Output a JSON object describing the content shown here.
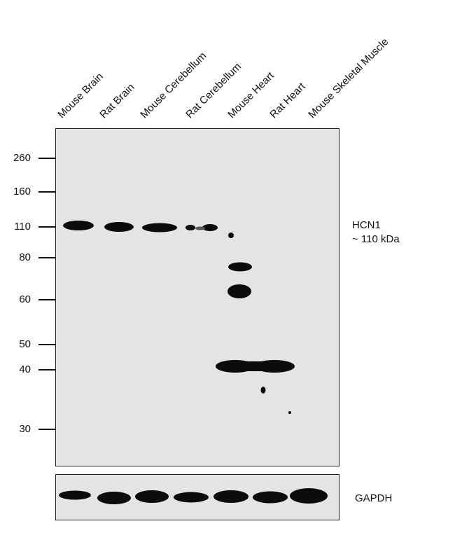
{
  "lanes": [
    "Mouse Brain",
    "Rat Brain",
    "Mouse Cerebellum",
    "Rat Cerebellum",
    "Mouse Heart",
    "Rat Heart",
    "Mouse Skeletal Muscle"
  ],
  "markers": [
    "260",
    "160",
    "110",
    "80",
    "60",
    "50",
    "40",
    "30"
  ],
  "target": {
    "name": "HCN1",
    "size": "~ 110 kDa"
  },
  "loading_control": "GAPDH"
}
